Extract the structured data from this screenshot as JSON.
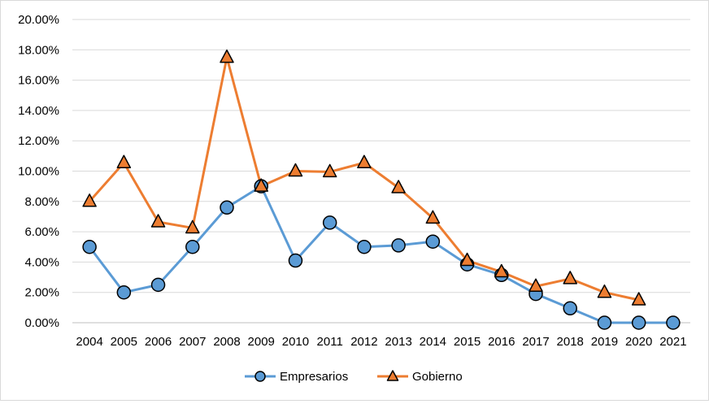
{
  "chart_data": {
    "type": "line",
    "title": "",
    "xlabel": "",
    "ylabel": "",
    "categories": [
      "2004",
      "2005",
      "2006",
      "2007",
      "2008",
      "2009",
      "2010",
      "2011",
      "2012",
      "2013",
      "2014",
      "2015",
      "2016",
      "2017",
      "2018",
      "2019",
      "2020",
      "2021"
    ],
    "ylim": [
      0,
      20
    ],
    "yticks": [
      "0.00%",
      "2.00%",
      "4.00%",
      "6.00%",
      "8.00%",
      "10.00%",
      "12.00%",
      "14.00%",
      "16.00%",
      "18.00%",
      "20.00%"
    ],
    "grid": true,
    "legend_position": "bottom",
    "series": [
      {
        "name": "Empresarios",
        "color": "#5B9BD5",
        "marker": "circle",
        "values": [
          5.0,
          2.0,
          2.5,
          5.0,
          7.6,
          9.0,
          4.1,
          6.6,
          5.0,
          5.1,
          5.35,
          3.85,
          3.15,
          1.9,
          0.95,
          0.0,
          0.0,
          0.0
        ]
      },
      {
        "name": "Gobierno",
        "color": "#ED7D31",
        "marker": "triangle",
        "values": [
          8.0,
          10.55,
          6.65,
          6.25,
          17.5,
          9.0,
          10.0,
          9.95,
          10.55,
          8.9,
          6.9,
          4.1,
          3.35,
          2.4,
          2.9,
          2.0,
          1.5,
          null
        ]
      }
    ]
  }
}
